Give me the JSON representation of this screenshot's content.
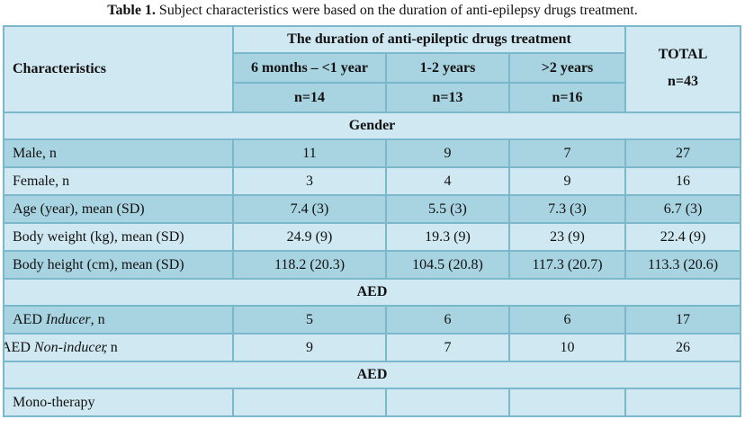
{
  "caption": {
    "label": "Table 1.",
    "text": "Subject characteristics were based on the duration of anti-epilepsy drugs treatment."
  },
  "header": {
    "characteristics": "Characteristics",
    "duration_title": "The duration of anti-epileptic drugs treatment",
    "groups": [
      {
        "label": "6 months – <1 year",
        "n": "n=14"
      },
      {
        "label": "1-2 years",
        "n": "n=13"
      },
      {
        "label": ">2 years",
        "n": "n=16"
      }
    ],
    "total_label": "TOTAL",
    "total_n": "n=43"
  },
  "sections": {
    "gender": "Gender",
    "aed1": "AED",
    "aed2": "AED"
  },
  "rows": [
    {
      "label": "Male, n",
      "values": [
        "11",
        "9",
        "7",
        "27"
      ]
    },
    {
      "label": "Female, n",
      "values": [
        "3",
        "4",
        "9",
        "16"
      ]
    },
    {
      "label": "Age (year), mean (SD)",
      "values": [
        "7.4 (3)",
        "5.5 (3)",
        "7.3 (3)",
        "6.7 (3)"
      ]
    },
    {
      "label": "Body weight (kg), mean (SD)",
      "values": [
        "24.9 (9)",
        "19.3 (9)",
        "23 (9)",
        "22.4 (9)"
      ]
    },
    {
      "label": "Body height (cm), mean (SD)",
      "values": [
        "118.2 (20.3)",
        "104.5 (20.8)",
        "117.3 (20.7)",
        "113.3 (20.6)"
      ]
    }
  ],
  "aed_rows": [
    {
      "label_prefix": "AED ",
      "label_em": "Inducer",
      "label_suffix": ", n",
      "values": [
        "5",
        "6",
        "6",
        "17"
      ]
    },
    {
      "label_prefix": "AED ",
      "label_em": "Non-inducer",
      "label_suffix": ", n",
      "values": [
        "9",
        "7",
        "10",
        "26"
      ]
    }
  ],
  "mono_row": {
    "label": "Mono-therapy",
    "values": [
      "",
      "",
      "",
      ""
    ]
  },
  "colors": {
    "header_light": "#cfe8f1",
    "row_dark": "#a8d3e1",
    "border": "#7cb8cc"
  }
}
